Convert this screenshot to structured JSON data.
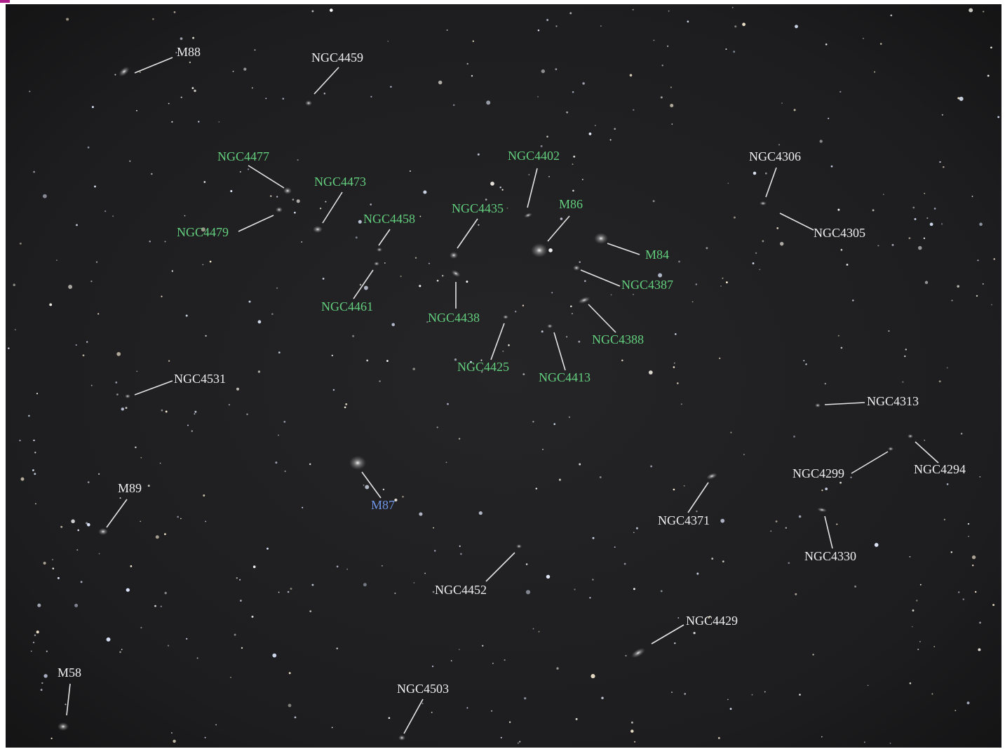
{
  "labels": [
    "M88",
    "NGC4459",
    "NGC4306",
    "NGC4305",
    "NGC4531",
    "NGC4313",
    "NGC4299",
    "NGC4294",
    "M89",
    "NGC4371",
    "NGC4330",
    "NGC4452",
    "NGC4429",
    "M58",
    "NGC4503",
    "NGC4477",
    "NGC4473",
    "NGC4479",
    "NGC4458",
    "NGC4461",
    "NGC4435",
    "NGC4438",
    "NGC4402",
    "M86",
    "M84",
    "NGC4387",
    "NGC4388",
    "NGC4425",
    "NGC4413",
    "M87"
  ]
}
